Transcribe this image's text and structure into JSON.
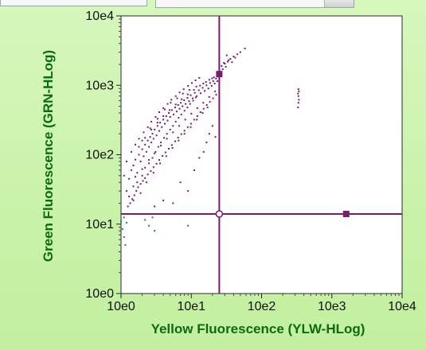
{
  "chart_data": {
    "type": "scatter",
    "title": "",
    "xlabel": "Yellow Fluorescence (YLW-HLog)",
    "ylabel": "Green Fluorescence (GRN-HLog)",
    "xscale": "log",
    "yscale": "log",
    "xlim": [
      1,
      10000
    ],
    "ylim": [
      1,
      10000
    ],
    "x_ticks": [
      "10e0",
      "10e1",
      "10e2",
      "10e3",
      "10e4"
    ],
    "y_ticks": [
      "10e0",
      "10e1",
      "10e2",
      "10e3",
      "10e4"
    ],
    "grid": false,
    "quadrant_gate": {
      "x": 25,
      "y": 14,
      "color": "#7b1a73"
    },
    "gate_handles": [
      {
        "x": 25,
        "y": 1450
      },
      {
        "x": 1600,
        "y": 14
      }
    ],
    "series": [
      {
        "color": "#7a1a78",
        "points": [
          [
            1.2,
            30
          ],
          [
            1.3,
            45
          ],
          [
            1.4,
            60
          ],
          [
            1.5,
            70
          ],
          [
            1.6,
            85
          ],
          [
            1.7,
            55
          ],
          [
            1.8,
            100
          ],
          [
            1.9,
            80
          ],
          [
            2.0,
            120
          ],
          [
            2.1,
            95
          ],
          [
            2.2,
            140
          ],
          [
            2.3,
            110
          ],
          [
            2.4,
            160
          ],
          [
            2.5,
            130
          ],
          [
            2.6,
            180
          ],
          [
            2.7,
            150
          ],
          [
            2.8,
            200
          ],
          [
            2.9,
            170
          ],
          [
            3.0,
            230
          ],
          [
            3.2,
            190
          ],
          [
            3.3,
            260
          ],
          [
            3.5,
            220
          ],
          [
            3.6,
            290
          ],
          [
            3.8,
            250
          ],
          [
            4.0,
            320
          ],
          [
            4.2,
            280
          ],
          [
            4.4,
            360
          ],
          [
            4.6,
            310
          ],
          [
            4.8,
            400
          ],
          [
            5.0,
            350
          ],
          [
            5.3,
            440
          ],
          [
            5.6,
            380
          ],
          [
            5.9,
            480
          ],
          [
            6.2,
            420
          ],
          [
            6.5,
            520
          ],
          [
            6.8,
            460
          ],
          [
            7.1,
            560
          ],
          [
            7.5,
            500
          ],
          [
            7.9,
            610
          ],
          [
            8.3,
            540
          ],
          [
            8.8,
            660
          ],
          [
            9.3,
            590
          ],
          [
            9.8,
            720
          ],
          [
            10.5,
            650
          ],
          [
            11.2,
            780
          ],
          [
            12.0,
            700
          ],
          [
            12.8,
            850
          ],
          [
            13.6,
            770
          ],
          [
            14.5,
            920
          ],
          [
            15.5,
            830
          ],
          [
            16.5,
            1000
          ],
          [
            17.5,
            900
          ],
          [
            18.5,
            1080
          ],
          [
            19.5,
            980
          ],
          [
            20.5,
            1150
          ],
          [
            21.5,
            1060
          ],
          [
            22.5,
            1250
          ],
          [
            23.5,
            1150
          ],
          [
            24.5,
            1350
          ],
          [
            25.5,
            1420
          ],
          [
            1.3,
            25
          ],
          [
            1.5,
            35
          ],
          [
            1.7,
            40
          ],
          [
            2.0,
            50
          ],
          [
            2.2,
            65
          ],
          [
            2.5,
            75
          ],
          [
            2.8,
            90
          ],
          [
            3.1,
            110
          ],
          [
            3.4,
            130
          ],
          [
            3.7,
            150
          ],
          [
            4.1,
            175
          ],
          [
            4.5,
            200
          ],
          [
            5.0,
            230
          ],
          [
            5.5,
            260
          ],
          [
            6.0,
            300
          ],
          [
            6.6,
            340
          ],
          [
            7.2,
            380
          ],
          [
            8.0,
            430
          ],
          [
            8.8,
            480
          ],
          [
            9.6,
            540
          ],
          [
            10.6,
            600
          ],
          [
            11.6,
            670
          ],
          [
            1.1,
            50
          ],
          [
            1.2,
            80
          ],
          [
            1.4,
            110
          ],
          [
            1.6,
            140
          ],
          [
            1.8,
            170
          ],
          [
            2.1,
            210
          ],
          [
            2.4,
            250
          ],
          [
            2.7,
            300
          ],
          [
            3.1,
            350
          ],
          [
            3.5,
            410
          ],
          [
            4.0,
            470
          ],
          [
            4.6,
            540
          ],
          [
            5.2,
            620
          ],
          [
            6.0,
            700
          ],
          [
            6.8,
            790
          ],
          [
            7.8,
            880
          ],
          [
            9.0,
            980
          ],
          [
            10.2,
            1080
          ],
          [
            11.5,
            1180
          ],
          [
            13.0,
            1280
          ],
          [
            1.5,
            22
          ],
          [
            1.9,
            28
          ],
          [
            2.3,
            40
          ],
          [
            2.9,
            55
          ],
          [
            3.6,
            75
          ],
          [
            4.4,
            95
          ],
          [
            5.4,
            125
          ],
          [
            6.6,
            160
          ],
          [
            8.0,
            200
          ],
          [
            9.8,
            250
          ],
          [
            12.0,
            320
          ],
          [
            14.5,
            400
          ],
          [
            17.0,
            480
          ],
          [
            2.0,
            160
          ],
          [
            2.6,
            240
          ],
          [
            3.3,
            330
          ],
          [
            4.2,
            450
          ],
          [
            5.1,
            560
          ],
          [
            6.3,
            650
          ],
          [
            7.6,
            760
          ],
          [
            9.4,
            860
          ],
          [
            11.8,
            960
          ],
          [
            14.8,
            1060
          ],
          [
            18.0,
            1200
          ],
          [
            21.0,
            1300
          ],
          [
            1.25,
            18
          ],
          [
            1.35,
            20
          ],
          [
            1.45,
            23
          ],
          [
            1.55,
            26
          ],
          [
            1.65,
            30
          ],
          [
            1.75,
            34
          ],
          [
            1.9,
            38
          ],
          [
            2.05,
            42
          ],
          [
            2.2,
            46
          ],
          [
            2.4,
            52
          ],
          [
            2.65,
            58
          ],
          [
            2.9,
            66
          ],
          [
            3.2,
            74
          ],
          [
            3.5,
            84
          ],
          [
            3.9,
            96
          ],
          [
            4.3,
            108
          ],
          [
            4.8,
            122
          ],
          [
            5.3,
            138
          ],
          [
            5.9,
            156
          ],
          [
            6.5,
            176
          ],
          [
            7.2,
            198
          ],
          [
            8.0,
            222
          ],
          [
            8.9,
            250
          ],
          [
            9.9,
            280
          ],
          [
            11.0,
            320
          ],
          [
            12.2,
            360
          ],
          [
            13.5,
            410
          ],
          [
            15.0,
            460
          ],
          [
            16.6,
            520
          ],
          [
            18.4,
            580
          ],
          [
            20.4,
            650
          ],
          [
            22.6,
            730
          ],
          [
            1.6,
            48
          ],
          [
            2.0,
            62
          ],
          [
            2.5,
            84
          ],
          [
            3.0,
            105
          ],
          [
            3.7,
            135
          ],
          [
            4.5,
            170
          ],
          [
            5.5,
            210
          ],
          [
            6.7,
            260
          ],
          [
            8.2,
            320
          ],
          [
            10.0,
            390
          ],
          [
            12.2,
            470
          ],
          [
            14.8,
            560
          ],
          [
            18.0,
            680
          ],
          [
            21.8,
            820
          ],
          [
            1.8,
            130
          ],
          [
            2.2,
            175
          ],
          [
            2.7,
            230
          ],
          [
            3.3,
            290
          ],
          [
            4.0,
            360
          ],
          [
            4.9,
            440
          ],
          [
            6.0,
            530
          ],
          [
            7.3,
            630
          ],
          [
            8.9,
            740
          ],
          [
            10.9,
            860
          ],
          [
            13.3,
            990
          ],
          [
            16.2,
            1120
          ],
          [
            19.8,
            1260
          ],
          [
            13.0,
            90
          ],
          [
            15.0,
            110
          ],
          [
            11.0,
            60
          ],
          [
            16.5,
            150
          ],
          [
            18.0,
            200
          ],
          [
            7.0,
            40
          ],
          [
            9.0,
            30
          ],
          [
            3.0,
            18
          ],
          [
            4.0,
            22
          ],
          [
            5.5,
            20
          ],
          [
            20.0,
            260
          ],
          [
            22.0,
            180
          ],
          [
            27,
            1900
          ],
          [
            30,
            2050
          ],
          [
            33,
            2200
          ],
          [
            36,
            2400
          ],
          [
            40,
            2600
          ],
          [
            45,
            2800
          ],
          [
            50,
            3000
          ],
          [
            58,
            3400
          ],
          [
            28,
            1700
          ],
          [
            31,
            1850
          ],
          [
            34,
            2300
          ],
          [
            38,
            2150
          ],
          [
            42,
            2500
          ],
          [
            29,
            2100
          ],
          [
            32,
            2700
          ],
          [
            330,
            480
          ],
          [
            335,
            560
          ],
          [
            340,
            620
          ],
          [
            335,
            700
          ],
          [
            330,
            760
          ],
          [
            340,
            820
          ],
          [
            335,
            880
          ]
        ]
      },
      {
        "color": "#1f7f6e",
        "points": [
          [
            1.0,
            11
          ],
          [
            1.1,
            12.5
          ],
          [
            1.2,
            10.5
          ],
          [
            2.5,
            9.5
          ],
          [
            3.0,
            8
          ],
          [
            2.8,
            12.5
          ],
          [
            1.05,
            8.5
          ],
          [
            1.1,
            6.5
          ],
          [
            1.15,
            5
          ],
          [
            9.0,
            9.5
          ],
          [
            2.2,
            11.5
          ]
        ]
      }
    ]
  }
}
